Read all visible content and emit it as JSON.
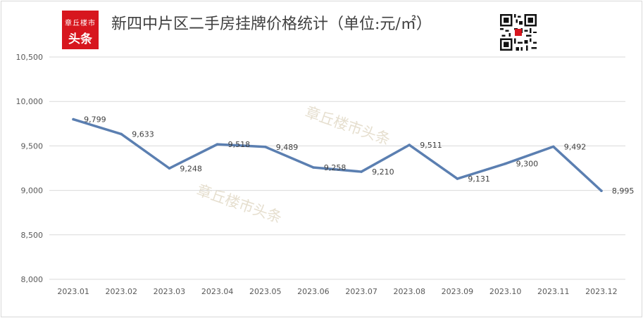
{
  "header": {
    "logo_line1": "章丘楼市",
    "logo_line2": "头条",
    "title": "新四中片区二手房挂牌价格统计（单位:元/㎡）",
    "qr_icon": "qr-code-icon"
  },
  "watermarks": [
    "章丘楼市头条",
    "章丘楼市头条"
  ],
  "colors": {
    "line": "#5b7fb1",
    "grid": "#d9d9d9",
    "logo": "#d7161e",
    "text": "#404040"
  },
  "chart_data": {
    "type": "line",
    "title": "新四中片区二手房挂牌价格统计（单位:元/㎡）",
    "xlabel": "",
    "ylabel": "",
    "categories": [
      "2023.01",
      "2023.02",
      "2023.03",
      "2023.04",
      "2023.05",
      "2023.06",
      "2023.07",
      "2023.08",
      "2023.09",
      "2023.10",
      "2023.11",
      "2023.12"
    ],
    "series": [
      {
        "values": [
          9799,
          9633,
          9248,
          9518,
          9489,
          9258,
          9210,
          9511,
          9131,
          9300,
          9492,
          8995
        ]
      }
    ],
    "data_labels": [
      "9,799",
      "9,633",
      "9,248",
      "9,518",
      "9,489",
      "9,258",
      "9,210",
      "9,511",
      "9,131",
      "9,300",
      "9,492",
      "8,995"
    ],
    "ylim": [
      8000,
      10500
    ],
    "yticks": [
      8000,
      8500,
      9000,
      9500,
      10000,
      10500
    ],
    "ytick_labels": [
      "8,000",
      "8,500",
      "9,000",
      "9,500",
      "10,000",
      "10,500"
    ],
    "grid": true,
    "legend": "none"
  }
}
